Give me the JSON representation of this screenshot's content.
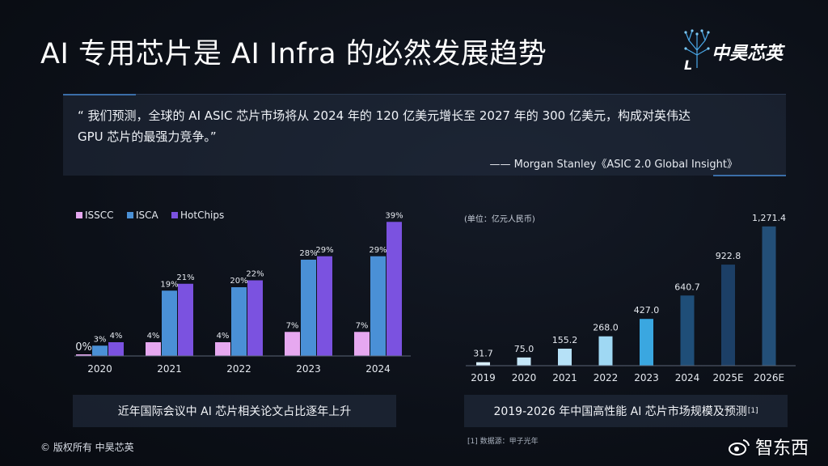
{
  "title": "AI 专用芯片是 AI Infra 的必然发展趋势",
  "logo": {
    "text": "中昊芯英"
  },
  "quote": {
    "text": "“ 我们预测，全球的 AI ASIC 芯片市场将从 2024 年的 120 亿美元增长至 2027 年的 300 亿美元，构成对英伟达 GPU 芯片的最强力竞争。”",
    "source": "—— Morgan Stanley《ASIC 2.0 Global Insight》"
  },
  "chart_data": [
    {
      "type": "bar",
      "title": "近年国际会议中 AI 芯片相关论文占比逐年上升",
      "categories": [
        "2020",
        "2021",
        "2022",
        "2023",
        "2024"
      ],
      "series": [
        {
          "name": "ISSCC",
          "values": [
            0,
            4,
            4,
            7,
            7
          ],
          "labels": [
            "0%",
            "4%",
            "4%",
            "7%",
            "7%"
          ],
          "color": "#e6a8f0"
        },
        {
          "name": "ISCA",
          "values": [
            3,
            19,
            20,
            28,
            29
          ],
          "labels": [
            "3%",
            "19%",
            "20%",
            "28%",
            "29%"
          ],
          "color": "#4a90d6"
        },
        {
          "name": "HotChips",
          "values": [
            4,
            21,
            22,
            29,
            39
          ],
          "labels": [
            "4%",
            "21%",
            "22%",
            "29%",
            "39%"
          ],
          "color": "#7b52e0"
        }
      ],
      "ylim": [
        0,
        40
      ],
      "legend": "top-left"
    },
    {
      "type": "bar",
      "title": "2019-2026 年中国高性能 AI 芯片市场规模及预测",
      "title_note": "[1]",
      "unit": "(单位：亿元人民币)",
      "categories": [
        "2019",
        "2020",
        "2021",
        "2022",
        "2023",
        "2024",
        "2025E",
        "2026E"
      ],
      "values": [
        31.7,
        75.0,
        155.2,
        268.0,
        427.0,
        640.7,
        922.8,
        1271.4
      ],
      "labels": [
        "31.7",
        "75.0",
        "155.2",
        "268.0",
        "427.0",
        "640.7",
        "922.8",
        "1,271.4"
      ],
      "colors": [
        "#d8eefb",
        "#c4e6f8",
        "#b6e1f7",
        "#9fd8f3",
        "#3aa7e0",
        "#1f4e78",
        "#1c3f66",
        "#234f78"
      ],
      "ylim": [
        0,
        1300
      ]
    }
  ],
  "footnote": "[1] 数据源：甲子光年",
  "copyright": "© 版权所有 中昊芯英",
  "watermark": "智东西"
}
